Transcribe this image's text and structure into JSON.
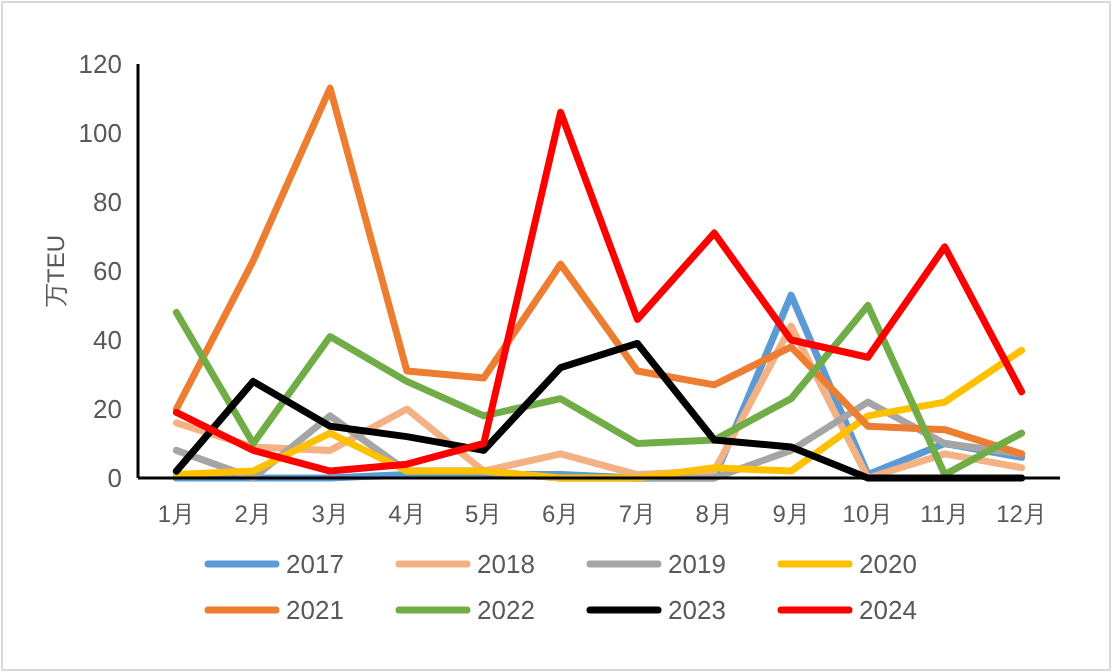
{
  "chart_data": {
    "type": "line",
    "ylabel": "万TEU",
    "categories": [
      "1月",
      "2月",
      "3月",
      "4月",
      "5月",
      "6月",
      "7月",
      "8月",
      "9月",
      "10月",
      "11月",
      "12月"
    ],
    "ylim": [
      0,
      120
    ],
    "yticks": [
      0,
      20,
      40,
      60,
      80,
      100,
      120
    ],
    "grid": false,
    "legend": "bottom",
    "marker": "none",
    "line_style": "solid",
    "series": [
      {
        "name": "2017",
        "color": "#5b9bd5",
        "values": [
          0,
          0,
          0,
          1,
          1,
          1,
          0,
          0,
          53,
          1,
          10,
          6
        ]
      },
      {
        "name": "2018",
        "color": "#f4b183",
        "values": [
          16,
          9,
          8,
          20,
          2,
          7,
          1,
          2,
          44,
          0,
          7,
          3
        ]
      },
      {
        "name": "2019",
        "color": "#a5a5a5",
        "values": [
          8,
          0,
          18,
          2,
          2,
          0,
          0,
          0,
          8,
          22,
          10,
          7
        ]
      },
      {
        "name": "2020",
        "color": "#ffc000",
        "values": [
          1,
          2,
          13,
          2,
          2,
          0,
          0,
          3,
          2,
          18,
          22,
          37
        ]
      },
      {
        "name": "2021",
        "color": "#ed7d31",
        "values": [
          20,
          63,
          113,
          31,
          29,
          62,
          31,
          27,
          38,
          15,
          14,
          7
        ]
      },
      {
        "name": "2022",
        "color": "#70ad47",
        "values": [
          48,
          10,
          41,
          28,
          18,
          23,
          10,
          11,
          23,
          50,
          1,
          13
        ]
      },
      {
        "name": "2023",
        "color": "#000000",
        "values": [
          2,
          28,
          15,
          12,
          8,
          32,
          39,
          11,
          9,
          0,
          0,
          0
        ]
      },
      {
        "name": "2024",
        "color": "#ff0000",
        "values": [
          19,
          8,
          2,
          4,
          10,
          106,
          46,
          71,
          40,
          35,
          67,
          25
        ]
      }
    ]
  }
}
